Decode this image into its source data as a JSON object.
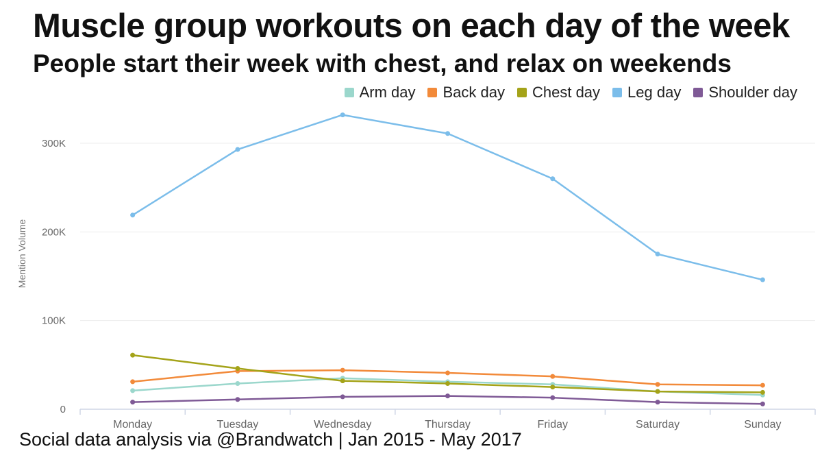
{
  "title": "Muscle group workouts on each day of the week",
  "subtitle": "People start their week with chest, and relax on weekends",
  "footer": "Social data analysis via @Brandwatch | Jan 2015 - May 2017",
  "chart_data": {
    "type": "line",
    "ylabel": "Mention Volume",
    "xlabel": "",
    "ylim": [
      0,
      340000
    ],
    "yticks": [
      0,
      100000,
      200000,
      300000
    ],
    "ytick_labels": [
      "0",
      "100K",
      "200K",
      "300K"
    ],
    "grid": true,
    "legend_position": "top-right",
    "categories": [
      "Monday",
      "Tuesday",
      "Wednesday",
      "Thursday",
      "Friday",
      "Saturday",
      "Sunday"
    ],
    "series": [
      {
        "name": "Arm day",
        "color": "#9bd7cc",
        "values": [
          21000,
          29000,
          35000,
          31000,
          28000,
          20000,
          16000
        ]
      },
      {
        "name": "Back day",
        "color": "#f28a3a",
        "values": [
          31000,
          43000,
          44000,
          41000,
          37000,
          28000,
          27000
        ]
      },
      {
        "name": "Chest day",
        "color": "#a4a319",
        "values": [
          61000,
          46000,
          32000,
          29000,
          25000,
          20000,
          19000
        ]
      },
      {
        "name": "Leg day",
        "color": "#7bbdea",
        "values": [
          219000,
          293000,
          332000,
          311000,
          260000,
          175000,
          146000
        ]
      },
      {
        "name": "Shoulder day",
        "color": "#7f5a96",
        "values": [
          8000,
          11000,
          14000,
          15000,
          13000,
          8000,
          6000
        ]
      }
    ]
  }
}
